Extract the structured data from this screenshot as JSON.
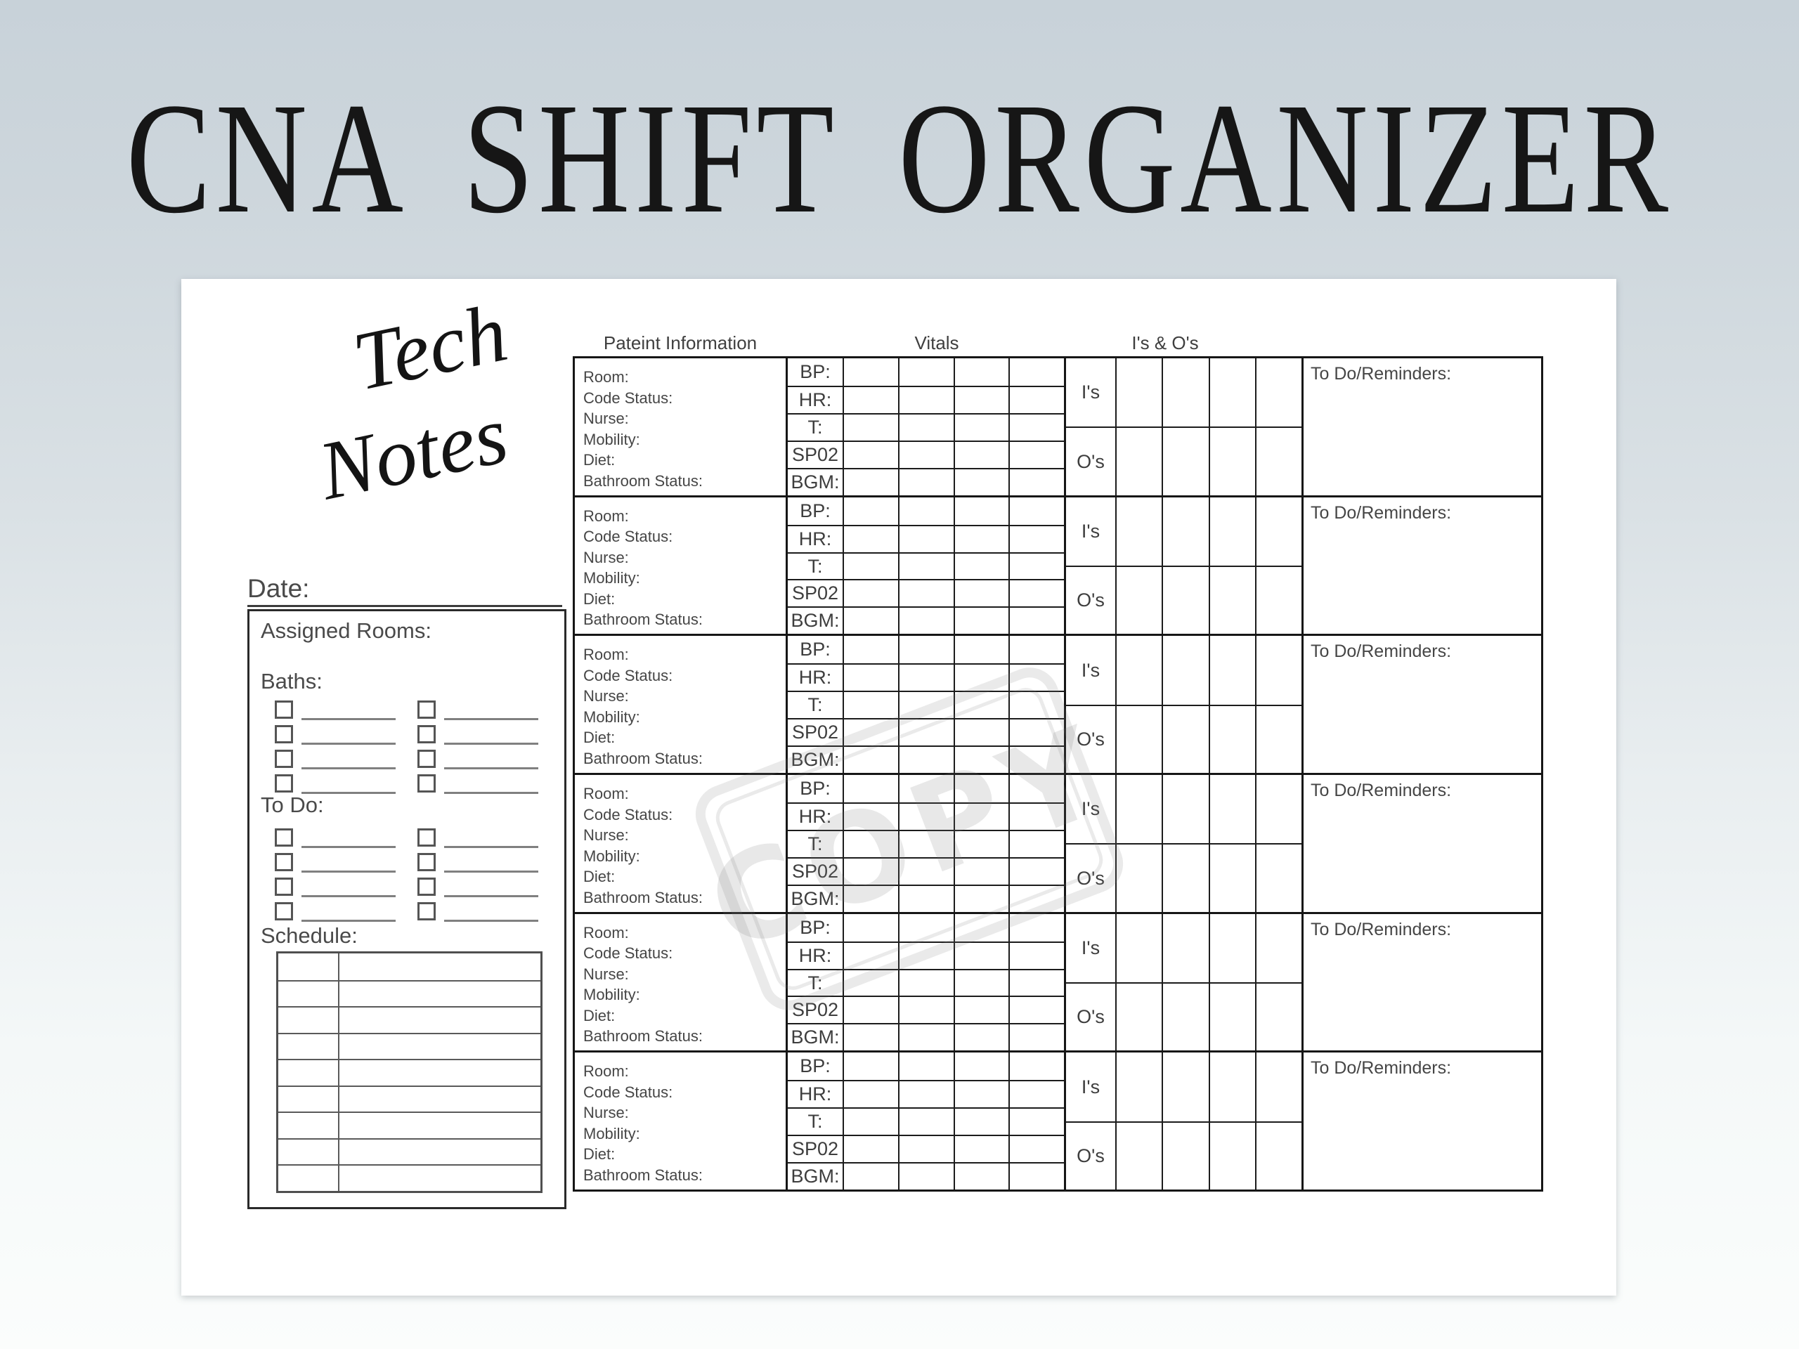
{
  "title": "CNA SHIFT ORGANIZER",
  "notepad": {
    "heading_line1": "Tech",
    "heading_line2": "Notes",
    "date_label": "Date:",
    "assigned_rooms_label": "Assigned Rooms:",
    "baths_label": "Baths:",
    "baths_checkbox_rows": 4,
    "checkbox_columns": 2,
    "todo_label": "To Do:",
    "todo_checkbox_rows": 4,
    "schedule_label": "Schedule:",
    "schedule_rows": 9
  },
  "patient_table": {
    "section_headers": {
      "patient_info": "Pateint Information",
      "vitals": "Vitals",
      "ins_and_outs": "I's & O's"
    },
    "blocks": 6,
    "patient_info_labels": [
      "Room:",
      "Code Status:",
      "Nurse:",
      "Mobility:",
      "Diet:",
      "Bathroom Status:"
    ],
    "vitals_row_labels": [
      "BP:",
      "HR:",
      "T:",
      "SP02",
      "BGM:"
    ],
    "vitals_value_columns": 4,
    "io_row_labels": [
      "I's",
      "O's"
    ],
    "io_value_columns": 4,
    "reminders_label": "To Do/Reminders:"
  },
  "watermark": {
    "text": "COPY"
  },
  "colors": {
    "background_top": "#c8d2d9",
    "background_bottom": "#fbfdfc",
    "paper": "#ffffff",
    "grid_line": "#161616",
    "soft_line": "#5a5a5a",
    "label_text": "#464646",
    "title_text": "#161616",
    "watermark_tint": "rgba(120,120,120,0.17)"
  }
}
